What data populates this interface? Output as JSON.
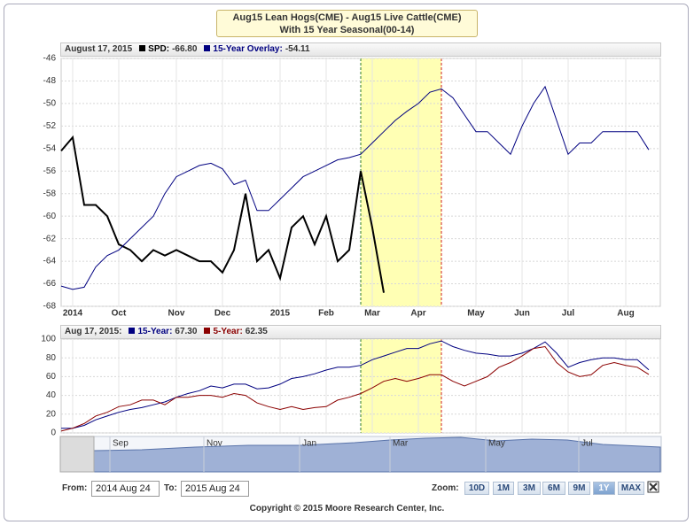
{
  "title": [
    "Aug15 Lean Hogs(CME) - Aug15 Live Cattle(CME)",
    "With 15 Year Seasonal(00-14)"
  ],
  "chart_data": [
    {
      "type": "line",
      "date_label": "August 17, 2015",
      "categories": [
        null,
        "2014",
        null,
        null,
        null,
        "Oct",
        null,
        null,
        null,
        null,
        "Nov",
        null,
        null,
        null,
        "Dec",
        null,
        null,
        null,
        null,
        "2015",
        null,
        null,
        null,
        "Feb",
        null,
        null,
        null,
        "Mar",
        null,
        null,
        null,
        "Apr",
        null,
        null,
        null,
        null,
        "May",
        null,
        null,
        null,
        "Jun",
        null,
        null,
        null,
        "Jul",
        null,
        null,
        null,
        null,
        "Aug",
        null,
        null,
        null
      ],
      "ylim": [
        -68,
        -46
      ],
      "yticks": [
        -68,
        -66,
        -64,
        -62,
        -60,
        -58,
        -56,
        -54,
        -52,
        -50,
        -48,
        -46
      ],
      "grid": true,
      "highlight": {
        "from": 26,
        "to": 33
      },
      "series": [
        {
          "name": "SPD:",
          "last_label": "-66.80",
          "color": "#000000",
          "values": [
            -54.2,
            -53,
            -59,
            -59,
            -60,
            -62.5,
            -63,
            -64,
            -63,
            -63.5,
            -63,
            -63.5,
            -64,
            -64,
            -65,
            -63,
            -58,
            -64,
            -63,
            -65.5,
            -61,
            -60,
            -62.5,
            -60,
            -64,
            -63,
            -56,
            -61,
            -66.8,
            null,
            null,
            null,
            null,
            null,
            null,
            null,
            null,
            null,
            null,
            null,
            null,
            null,
            null,
            null,
            null,
            null,
            null,
            null,
            null,
            null,
            null,
            null,
            null
          ]
        },
        {
          "name": "15-Year Overlay:",
          "last_label": "-54.11",
          "color": "#000080",
          "values": [
            -66.2,
            -66.5,
            -66.3,
            -64.5,
            -63.5,
            -63,
            -62,
            -61,
            -60,
            -58,
            -56.5,
            -56,
            -55.5,
            -55.3,
            -55.8,
            -57.2,
            -56.8,
            -59.5,
            -59.5,
            -58.5,
            -57.5,
            -56.5,
            -56,
            -55.5,
            -55,
            -54.8,
            -54.5,
            -53.5,
            -52.5,
            -51.5,
            -50.7,
            -50,
            -49,
            -48.7,
            -49.5,
            -51,
            -52.5,
            -52.5,
            -53.5,
            -54.5,
            -52,
            -50,
            -48.5,
            -51.5,
            -54.5,
            -53.5,
            -53.5,
            -52.5,
            -52.5,
            -52.5,
            -52.5,
            -54.11,
            null
          ]
        }
      ]
    },
    {
      "type": "line",
      "date_label": "Aug 17, 2015:",
      "ylim": [
        0,
        100
      ],
      "yticks": [
        0,
        20,
        40,
        60,
        80,
        100
      ],
      "grid": true,
      "highlight": {
        "from": 26,
        "to": 33
      },
      "series": [
        {
          "name": "15-Year:",
          "last_label": "67.30",
          "color": "#000080",
          "values": [
            5,
            5,
            8,
            14,
            18,
            22,
            25,
            27,
            30,
            33,
            38,
            42,
            45,
            50,
            48,
            52,
            52,
            47,
            48,
            52,
            58,
            60,
            63,
            67,
            70,
            70,
            72,
            78,
            82,
            86,
            90,
            90,
            95,
            98,
            92,
            88,
            85,
            84,
            82,
            82,
            85,
            90,
            97,
            85,
            70,
            75,
            78,
            80,
            80,
            78,
            78,
            67.3,
            null
          ]
        },
        {
          "name": "5-Year:",
          "last_label": "62.35",
          "color": "#8b0000",
          "values": [
            2,
            5,
            10,
            18,
            22,
            28,
            30,
            35,
            35,
            30,
            38,
            38,
            40,
            40,
            38,
            42,
            40,
            32,
            28,
            25,
            28,
            25,
            27,
            28,
            35,
            38,
            42,
            48,
            55,
            58,
            55,
            58,
            62,
            62,
            55,
            50,
            55,
            60,
            70,
            75,
            82,
            90,
            92,
            75,
            65,
            60,
            62,
            72,
            75,
            72,
            70,
            62.35,
            null
          ]
        }
      ]
    }
  ],
  "navigator": {
    "labels": [
      "Sep",
      "Nov",
      "Jan",
      "Mar",
      "May",
      "Jul"
    ]
  },
  "controls": {
    "from_label": "From:",
    "from": "2014 Aug 24",
    "to_label": "To:",
    "to": "2015 Aug 24",
    "zoom_label": "Zoom:",
    "zoom": [
      "10D",
      "1M",
      "3M",
      "6M",
      "9M",
      "1Y",
      "MAX"
    ]
  },
  "copyright": "Copyright © 2015 Moore Research Center, Inc."
}
